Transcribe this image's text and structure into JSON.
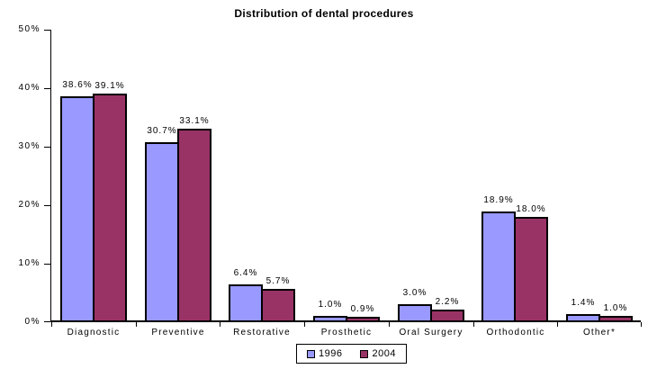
{
  "title": "Distribution of dental procedures",
  "chart_data": {
    "type": "bar",
    "title": "Distribution of dental procedures",
    "categories": [
      "Diagnostic",
      "Preventive",
      "Restorative",
      "Prosthetic",
      "Oral Surgery",
      "Orthodontic",
      "Other*"
    ],
    "series": [
      {
        "name": "1996",
        "color": "#9999FF",
        "values": [
          38.6,
          30.7,
          6.4,
          1.0,
          3.0,
          18.9,
          1.4
        ]
      },
      {
        "name": "2004",
        "color": "#993366",
        "values": [
          39.1,
          33.1,
          5.7,
          0.9,
          2.2,
          18.0,
          1.0
        ]
      }
    ],
    "data_labels": [
      [
        "38.6%",
        "30.7%",
        "6.4%",
        "1.0%",
        "3.0%",
        "18.9%",
        "1.4%"
      ],
      [
        "39.1%",
        "33.1%",
        "5.7%",
        "0.9%",
        "2.2%",
        "18.0%",
        "1.0%"
      ]
    ],
    "xlabel": "",
    "ylabel": "",
    "ylim": [
      0,
      50
    ],
    "ytick_step": 10,
    "ytick_labels": [
      "0%",
      "10%",
      "20%",
      "30%",
      "40%",
      "50%"
    ],
    "grid": false,
    "legend_position": "bottom",
    "colors": {
      "axis": "#000000",
      "bar_border": "#000000",
      "background": "#ffffff",
      "text": "#000000"
    }
  }
}
